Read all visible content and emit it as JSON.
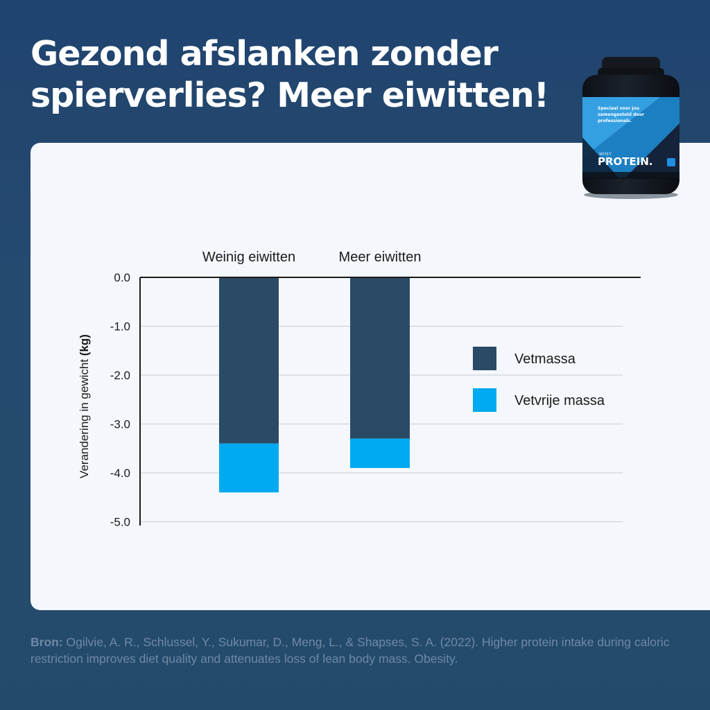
{
  "headline": {
    "line1": "Gezond afslanken zonder",
    "line2": "spierverlies? Meer eiwitten!"
  },
  "product": {
    "tagline_lines": [
      "Speciaal voor jou",
      "samengesteld door",
      "professionals."
    ],
    "small_label": "WHEY",
    "brand": "PROTEIN."
  },
  "chart_data": {
    "type": "bar",
    "stacked": true,
    "categories": [
      "Weinig eiwitten",
      "Meer eiwitten"
    ],
    "series": [
      {
        "name": "Vetmassa",
        "values": [
          -3.4,
          -3.3
        ],
        "color": "#2a4a66"
      },
      {
        "name": "Vetvrije massa",
        "values": [
          -1.0,
          -0.6
        ],
        "color": "#00aaf0"
      }
    ],
    "ylabel_prefix": "Verandering in gewicht ",
    "ylabel_unit": "(kg)",
    "yticks": [
      "0.0",
      "-1.0",
      "-2.0",
      "-3.0",
      "-4.0",
      "-5.0"
    ],
    "ylim": [
      -5,
      0
    ],
    "grid": true,
    "legend_position": "right"
  },
  "source": {
    "label": "Bron:",
    "text": " Ogilvie, A. R., Schlussel, Y., Sukumar, D., Meng, L., & Shapses, S. A. (2022). Higher protein intake during caloric restriction improves diet quality and attenuates loss of lean body mass. Obesity."
  }
}
